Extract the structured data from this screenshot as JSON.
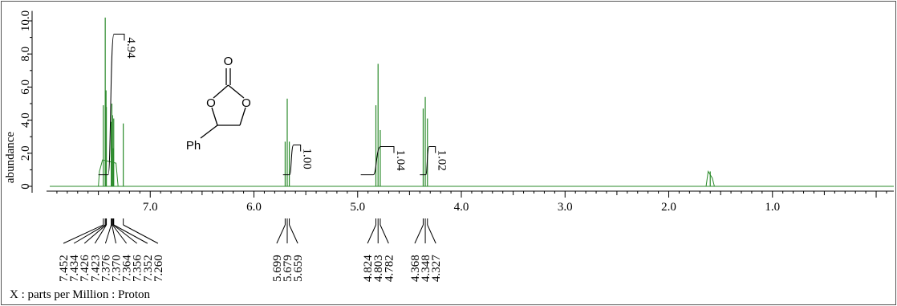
{
  "chart_data": {
    "type": "line",
    "title": "",
    "xlabel": "X : parts per Million : Proton",
    "ylabel": "abundance",
    "x_reversed": true,
    "xlim": [
      8.0,
      -0.17
    ],
    "ylim": [
      -0.4,
      10.6
    ],
    "x_ticks": [
      "7.0",
      "6.0",
      "5.0",
      "4.0",
      "3.0",
      "2.0",
      "1.0"
    ],
    "x_tick_values": [
      7.0,
      6.0,
      5.0,
      4.0,
      3.0,
      2.0,
      1.0
    ],
    "y_ticks": [
      "0",
      "2.0",
      "4.0",
      "6.0",
      "8.0",
      "10.0"
    ],
    "y_tick_values": [
      0,
      2,
      4,
      6,
      8,
      10
    ],
    "spectrum_color": "#2a8a2a",
    "peaks": [
      {
        "ppm": 7.452,
        "height": 4.9
      },
      {
        "ppm": 7.434,
        "height": 10.2
      },
      {
        "ppm": 7.426,
        "height": 5.8
      },
      {
        "ppm": 7.423,
        "height": 4.8
      },
      {
        "ppm": 7.376,
        "height": 3.9
      },
      {
        "ppm": 7.37,
        "height": 5.0
      },
      {
        "ppm": 7.364,
        "height": 4.3
      },
      {
        "ppm": 7.356,
        "height": 2.3
      },
      {
        "ppm": 7.352,
        "height": 4.1
      },
      {
        "ppm": 7.26,
        "height": 3.8
      },
      {
        "ppm": 5.699,
        "height": 2.7
      },
      {
        "ppm": 5.679,
        "height": 5.3
      },
      {
        "ppm": 5.659,
        "height": 2.7
      },
      {
        "ppm": 4.824,
        "height": 4.9
      },
      {
        "ppm": 4.803,
        "height": 7.4
      },
      {
        "ppm": 4.782,
        "height": 3.4
      },
      {
        "ppm": 4.368,
        "height": 4.7
      },
      {
        "ppm": 4.348,
        "height": 5.4
      },
      {
        "ppm": 4.327,
        "height": 4.1
      },
      {
        "ppm": 1.6,
        "height": 0.9
      }
    ],
    "integrals": [
      {
        "from": 7.5,
        "to": 7.25,
        "value": "4.94",
        "y_start": 0.7,
        "y_end": 9.2
      },
      {
        "from": 5.72,
        "to": 5.55,
        "value": "1.00",
        "y_start": 0.7,
        "y_end": 2.5
      },
      {
        "from": 4.97,
        "to": 4.65,
        "value": "1.04",
        "y_start": 0.7,
        "y_end": 2.4
      },
      {
        "from": 4.4,
        "to": 4.25,
        "value": "1.02",
        "y_start": 0.7,
        "y_end": 2.4
      }
    ],
    "peak_label_groups": [
      {
        "labels": [
          "7.452",
          "7.434",
          "7.426",
          "7.423",
          "7.376",
          "7.370",
          "7.364",
          "7.356",
          "7.352",
          "7.260"
        ]
      },
      {
        "labels": [
          "5.699",
          "5.679",
          "5.659"
        ]
      },
      {
        "labels": [
          "4.824",
          "4.803",
          "4.782"
        ]
      },
      {
        "labels": [
          "4.368",
          "4.348",
          "4.327"
        ]
      }
    ]
  },
  "structure": {
    "oxygen_top": "O",
    "oxygen_left": "O",
    "oxygen_right": "O",
    "substituent": "Ph"
  }
}
